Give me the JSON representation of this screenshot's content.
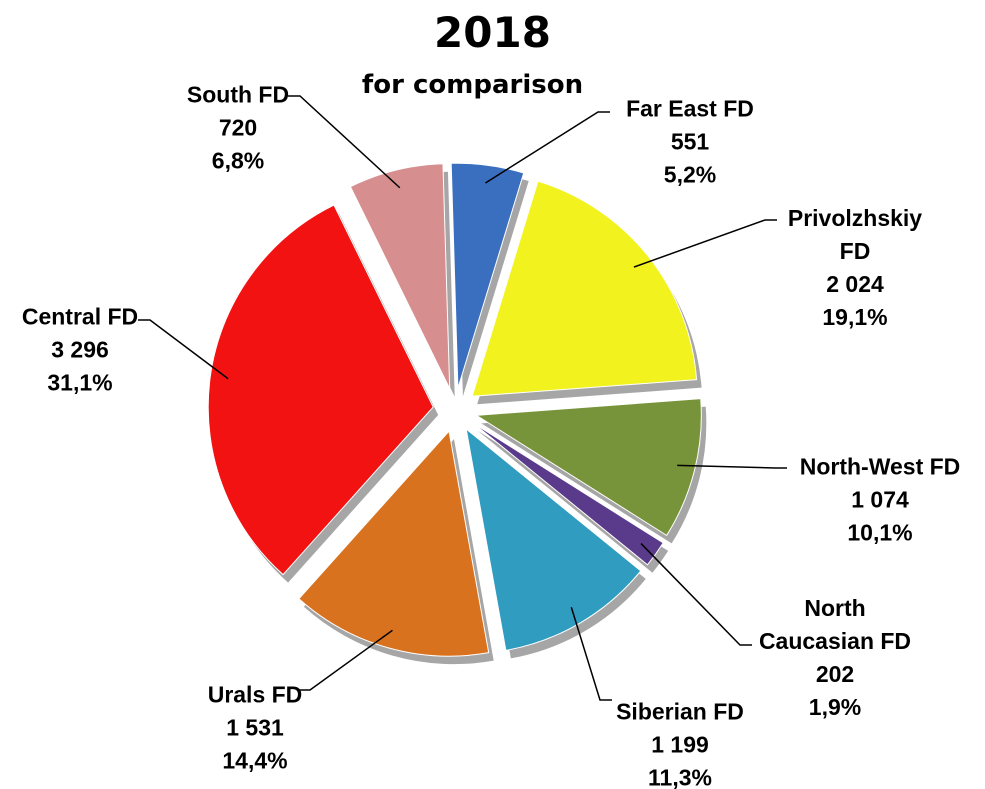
{
  "chart_data": {
    "type": "pie",
    "title": "2018",
    "subtitle": "for comparison",
    "categories": [
      "Far East FD",
      "Privolzhskiy FD",
      "North-West FD",
      "North Caucasian FD",
      "Siberian FD",
      "Urals FD",
      "Central FD",
      "South FD"
    ],
    "values": [
      551,
      2024,
      1074,
      202,
      1199,
      1531,
      3296,
      720
    ],
    "value_labels": [
      "551",
      "2 024",
      "1 074",
      "202",
      "1 199",
      "1 531",
      "3 296",
      "720"
    ],
    "percentage_labels": [
      "5,2%",
      "19,1%",
      "10,1%",
      "1,9%",
      "11,3%",
      "14,4%",
      "31,1%",
      "6,8%"
    ],
    "colors": [
      "#3a6fc0",
      "#f2f21e",
      "#77943a",
      "#5a3a8a",
      "#2f9cc0",
      "#d8721e",
      "#f21212",
      "#d68e8e"
    ]
  }
}
